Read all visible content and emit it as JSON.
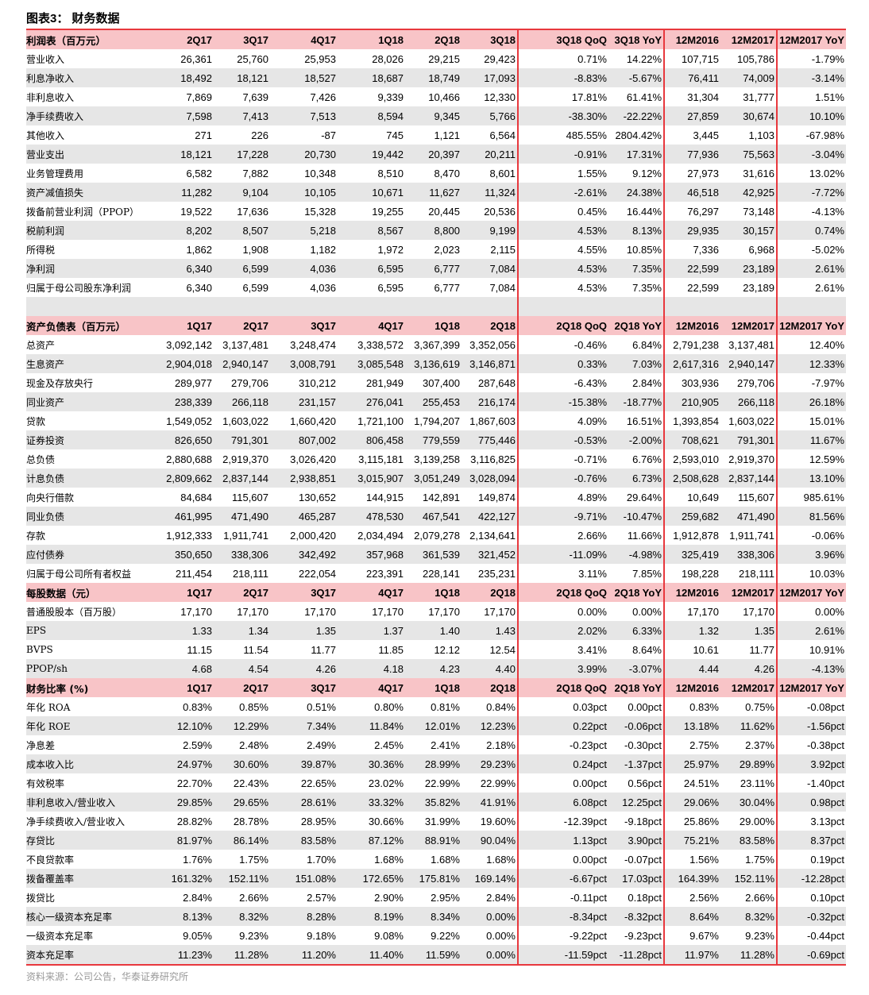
{
  "title": "图表3：  财务数据",
  "source": "资料来源：公司公告，华泰证券研究所",
  "sections": [
    {
      "header": [
        "利润表（百万元）",
        "2Q17",
        "3Q17",
        "4Q17",
        "1Q18",
        "2Q18",
        "3Q18",
        "3Q18 QoQ",
        "3Q18 YoY",
        "12M2016",
        "12M2017",
        "12M2017 YoY"
      ],
      "rows": [
        [
          "营业收入",
          "26,361",
          "25,760",
          "25,953",
          "28,026",
          "29,215",
          "29,423",
          "0.71%",
          "14.22%",
          "107,715",
          "105,786",
          "-1.79%"
        ],
        [
          "利息净收入",
          "18,492",
          "18,121",
          "18,527",
          "18,687",
          "18,749",
          "17,093",
          "-8.83%",
          "-5.67%",
          "76,411",
          "74,009",
          "-3.14%"
        ],
        [
          "非利息收入",
          "7,869",
          "7,639",
          "7,426",
          "9,339",
          "10,466",
          "12,330",
          "17.81%",
          "61.41%",
          "31,304",
          "31,777",
          "1.51%"
        ],
        [
          "净手续费收入",
          "7,598",
          "7,413",
          "7,513",
          "8,594",
          "9,345",
          "5,766",
          "-38.30%",
          "-22.22%",
          "27,859",
          "30,674",
          "10.10%"
        ],
        [
          "其他收入",
          "271",
          "226",
          "-87",
          "745",
          "1,121",
          "6,564",
          "485.55%",
          "2804.42%",
          "3,445",
          "1,103",
          "-67.98%"
        ],
        [
          "营业支出",
          "18,121",
          "17,228",
          "20,730",
          "19,442",
          "20,397",
          "20,211",
          "-0.91%",
          "17.31%",
          "77,936",
          "75,563",
          "-3.04%"
        ],
        [
          "业务管理费用",
          "6,582",
          "7,882",
          "10,348",
          "8,510",
          "8,470",
          "8,601",
          "1.55%",
          "9.12%",
          "27,973",
          "31,616",
          "13.02%"
        ],
        [
          "资产减值损失",
          "11,282",
          "9,104",
          "10,105",
          "10,671",
          "11,627",
          "11,324",
          "-2.61%",
          "24.38%",
          "46,518",
          "42,925",
          "-7.72%"
        ],
        [
          "拨备前营业利润（PPOP）",
          "19,522",
          "17,636",
          "15,328",
          "19,255",
          "20,445",
          "20,536",
          "0.45%",
          "16.44%",
          "76,297",
          "73,148",
          "-4.13%"
        ],
        [
          "税前利润",
          "8,202",
          "8,507",
          "5,218",
          "8,567",
          "8,800",
          "9,199",
          "4.53%",
          "8.13%",
          "29,935",
          "30,157",
          "0.74%"
        ],
        [
          "所得税",
          "1,862",
          "1,908",
          "1,182",
          "1,972",
          "2,023",
          "2,115",
          "4.55%",
          "10.85%",
          "7,336",
          "6,968",
          "-5.02%"
        ],
        [
          "净利润",
          "6,340",
          "6,599",
          "4,036",
          "6,595",
          "6,777",
          "7,084",
          "4.53%",
          "7.35%",
          "22,599",
          "23,189",
          "2.61%"
        ],
        [
          "归属于母公司股东净利润",
          "6,340",
          "6,599",
          "4,036",
          "6,595",
          "6,777",
          "7,084",
          "4.53%",
          "7.35%",
          "22,599",
          "23,189",
          "2.61%"
        ],
        [
          "",
          "",
          "",
          "",
          "",
          "",
          "",
          "",
          "",
          "",
          "",
          ""
        ]
      ]
    },
    {
      "header": [
        "资产负债表（百万元）",
        "1Q17",
        "2Q17",
        "3Q17",
        "4Q17",
        "1Q18",
        "2Q18",
        "2Q18 QoQ",
        "2Q18 YoY",
        "12M2016",
        "12M2017",
        "12M2017 YoY"
      ],
      "rows": [
        [
          "总资产",
          "3,092,142",
          "3,137,481",
          "3,248,474",
          "3,338,572",
          "3,367,399",
          "3,352,056",
          "-0.46%",
          "6.84%",
          "2,791,238",
          "3,137,481",
          "12.40%"
        ],
        [
          "生息资产",
          "2,904,018",
          "2,940,147",
          "3,008,791",
          "3,085,548",
          "3,136,619",
          "3,146,871",
          "0.33%",
          "7.03%",
          "2,617,316",
          "2,940,147",
          "12.33%"
        ],
        [
          "现金及存放央行",
          "289,977",
          "279,706",
          "310,212",
          "281,949",
          "307,400",
          "287,648",
          "-6.43%",
          "2.84%",
          "303,936",
          "279,706",
          "-7.97%"
        ],
        [
          "同业资产",
          "238,339",
          "266,118",
          "231,157",
          "276,041",
          "255,453",
          "216,174",
          "-15.38%",
          "-18.77%",
          "210,905",
          "266,118",
          "26.18%"
        ],
        [
          "贷款",
          "1,549,052",
          "1,603,022",
          "1,660,420",
          "1,721,100",
          "1,794,207",
          "1,867,603",
          "4.09%",
          "16.51%",
          "1,393,854",
          "1,603,022",
          "15.01%"
        ],
        [
          "证券投资",
          "826,650",
          "791,301",
          "807,002",
          "806,458",
          "779,559",
          "775,446",
          "-0.53%",
          "-2.00%",
          "708,621",
          "791,301",
          "11.67%"
        ],
        [
          "总负债",
          "2,880,688",
          "2,919,370",
          "3,026,420",
          "3,115,181",
          "3,139,258",
          "3,116,825",
          "-0.71%",
          "6.76%",
          "2,593,010",
          "2,919,370",
          "12.59%"
        ],
        [
          "计息负债",
          "2,809,662",
          "2,837,144",
          "2,938,851",
          "3,015,907",
          "3,051,249",
          "3,028,094",
          "-0.76%",
          "6.73%",
          "2,508,628",
          "2,837,144",
          "13.10%"
        ],
        [
          "向央行借款",
          "84,684",
          "115,607",
          "130,652",
          "144,915",
          "142,891",
          "149,874",
          "4.89%",
          "29.64%",
          "10,649",
          "115,607",
          "985.61%"
        ],
        [
          "同业负债",
          "461,995",
          "471,490",
          "465,287",
          "478,530",
          "467,541",
          "422,127",
          "-9.71%",
          "-10.47%",
          "259,682",
          "471,490",
          "81.56%"
        ],
        [
          "存款",
          "1,912,333",
          "1,911,741",
          "2,000,420",
          "2,034,494",
          "2,079,278",
          "2,134,641",
          "2.66%",
          "11.66%",
          "1,912,878",
          "1,911,741",
          "-0.06%"
        ],
        [
          "应付债券",
          "350,650",
          "338,306",
          "342,492",
          "357,968",
          "361,539",
          "321,452",
          "-11.09%",
          "-4.98%",
          "325,419",
          "338,306",
          "3.96%"
        ],
        [
          "归属于母公司所有者权益",
          "211,454",
          "218,111",
          "222,054",
          "223,391",
          "228,141",
          "235,231",
          "3.11%",
          "7.85%",
          "198,228",
          "218,111",
          "10.03%"
        ]
      ]
    },
    {
      "header": [
        "每股数据（元）",
        "1Q17",
        "2Q17",
        "3Q17",
        "4Q17",
        "1Q18",
        "2Q18",
        "2Q18 QoQ",
        "2Q18 YoY",
        "12M2016",
        "12M2017",
        "12M2017 YoY"
      ],
      "rows": [
        [
          "普通股股本（百万股）",
          "17,170",
          "17,170",
          "17,170",
          "17,170",
          "17,170",
          "17,170",
          "0.00%",
          "0.00%",
          "17,170",
          "17,170",
          "0.00%"
        ],
        [
          "EPS",
          "1.33",
          "1.34",
          "1.35",
          "1.37",
          "1.40",
          "1.43",
          "2.02%",
          "6.33%",
          "1.32",
          "1.35",
          "2.61%"
        ],
        [
          "BVPS",
          "11.15",
          "11.54",
          "11.77",
          "11.85",
          "12.12",
          "12.54",
          "3.41%",
          "8.64%",
          "10.61",
          "11.77",
          "10.91%"
        ],
        [
          "PPOP/sh",
          "4.68",
          "4.54",
          "4.26",
          "4.18",
          "4.23",
          "4.40",
          "3.99%",
          "-3.07%",
          "4.44",
          "4.26",
          "-4.13%"
        ]
      ]
    },
    {
      "header": [
        "财务比率 (%)",
        "1Q17",
        "2Q17",
        "3Q17",
        "4Q17",
        "1Q18",
        "2Q18",
        "2Q18 QoQ",
        "2Q18 YoY",
        "12M2016",
        "12M2017",
        "12M2017 YoY"
      ],
      "rows": [
        [
          "年化 ROA",
          "0.83%",
          "0.85%",
          "0.51%",
          "0.80%",
          "0.81%",
          "0.84%",
          "0.03pct",
          "0.00pct",
          "0.83%",
          "0.75%",
          "-0.08pct"
        ],
        [
          "年化 ROE",
          "12.10%",
          "12.29%",
          "7.34%",
          "11.84%",
          "12.01%",
          "12.23%",
          "0.22pct",
          "-0.06pct",
          "13.18%",
          "11.62%",
          "-1.56pct"
        ],
        [
          "净息差",
          "2.59%",
          "2.48%",
          "2.49%",
          "2.45%",
          "2.41%",
          "2.18%",
          "-0.23pct",
          "-0.30pct",
          "2.75%",
          "2.37%",
          "-0.38pct"
        ],
        [
          "成本收入比",
          "24.97%",
          "30.60%",
          "39.87%",
          "30.36%",
          "28.99%",
          "29.23%",
          "0.24pct",
          "-1.37pct",
          "25.97%",
          "29.89%",
          "3.92pct"
        ],
        [
          "有效税率",
          "22.70%",
          "22.43%",
          "22.65%",
          "23.02%",
          "22.99%",
          "22.99%",
          "0.00pct",
          "0.56pct",
          "24.51%",
          "23.11%",
          "-1.40pct"
        ],
        [
          "非利息收入/营业收入",
          "29.85%",
          "29.65%",
          "28.61%",
          "33.32%",
          "35.82%",
          "41.91%",
          "6.08pct",
          "12.25pct",
          "29.06%",
          "30.04%",
          "0.98pct"
        ],
        [
          "净手续费收入/营业收入",
          "28.82%",
          "28.78%",
          "28.95%",
          "30.66%",
          "31.99%",
          "19.60%",
          "-12.39pct",
          "-9.18pct",
          "25.86%",
          "29.00%",
          "3.13pct"
        ],
        [
          "存贷比",
          "81.97%",
          "86.14%",
          "83.58%",
          "87.12%",
          "88.91%",
          "90.04%",
          "1.13pct",
          "3.90pct",
          "75.21%",
          "83.58%",
          "8.37pct"
        ],
        [
          "不良贷款率",
          "1.76%",
          "1.75%",
          "1.70%",
          "1.68%",
          "1.68%",
          "1.68%",
          "0.00pct",
          "-0.07pct",
          "1.56%",
          "1.75%",
          "0.19pct"
        ],
        [
          "拨备覆盖率",
          "161.32%",
          "152.11%",
          "151.08%",
          "172.65%",
          "175.81%",
          "169.14%",
          "-6.67pct",
          "17.03pct",
          "164.39%",
          "152.11%",
          "-12.28pct"
        ],
        [
          "拨贷比",
          "2.84%",
          "2.66%",
          "2.57%",
          "2.90%",
          "2.95%",
          "2.84%",
          "-0.11pct",
          "0.18pct",
          "2.56%",
          "2.66%",
          "0.10pct"
        ],
        [
          "核心一级资本充足率",
          "8.13%",
          "8.32%",
          "8.28%",
          "8.19%",
          "8.34%",
          "0.00%",
          "-8.34pct",
          "-8.32pct",
          "8.64%",
          "8.32%",
          "-0.32pct"
        ],
        [
          "一级资本充足率",
          "9.05%",
          "9.23%",
          "9.18%",
          "9.08%",
          "9.22%",
          "0.00%",
          "-9.22pct",
          "-9.23pct",
          "9.67%",
          "9.23%",
          "-0.44pct"
        ],
        [
          "资本充足率",
          "11.23%",
          "11.28%",
          "11.20%",
          "11.40%",
          "11.59%",
          "0.00%",
          "-11.59pct",
          "-11.28pct",
          "11.97%",
          "11.28%",
          "-0.69pct"
        ]
      ]
    }
  ],
  "colors": {
    "header_bg": "#f8c4c7",
    "stripe_bg": "#e6e6e6",
    "rule": "#e8383d"
  }
}
